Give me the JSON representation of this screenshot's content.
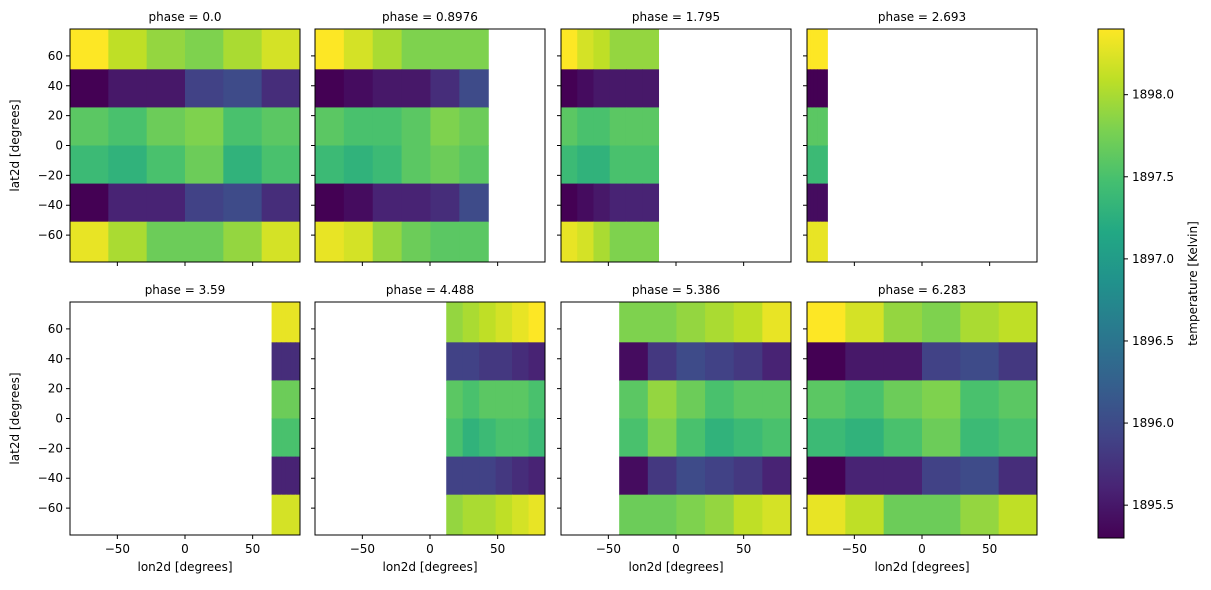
{
  "chart_data": {
    "type": "heatmap",
    "layout": "faceted 2x4 grid with shared colorbar",
    "x_label": "lon2d [degrees]",
    "y_label": "lat2d [degrees]",
    "xlim": [
      -85,
      85
    ],
    "ylim": [
      -78,
      78
    ],
    "x_ticks": [
      -50,
      0,
      50
    ],
    "x_tick_labels": [
      "−50",
      "0",
      "50"
    ],
    "y_ticks": [
      -60,
      -40,
      -20,
      0,
      20,
      40,
      60
    ],
    "y_tick_labels": [
      "−60",
      "−40",
      "−20",
      "0",
      "20",
      "40",
      "60"
    ],
    "lon_edges": [
      -85,
      -57,
      -28.5,
      0,
      28.5,
      57,
      85
    ],
    "lat_edges": [
      -78,
      -51,
      -25.5,
      0,
      25.5,
      51,
      78
    ],
    "colormap": "viridis",
    "colorbar": {
      "label": "temperature [Kelvin]",
      "vmin": 1895.3,
      "vmax": 1898.4,
      "ticks": [
        1895.5,
        1896.0,
        1896.5,
        1897.0,
        1897.5,
        1898.0
      ],
      "tick_labels": [
        "1895.5",
        "1896.0",
        "1896.5",
        "1897.0",
        "1897.5",
        "1898.0"
      ]
    },
    "panels": [
      {
        "title": "phase = 0.0",
        "lon_range": [
          -85,
          85
        ],
        "rows": [
          [
            1898.4,
            1898.1,
            1897.9,
            1897.8,
            1898.0,
            1898.2
          ],
          [
            1895.3,
            1895.5,
            1895.5,
            1895.9,
            1896.0,
            1895.7
          ],
          [
            1897.6,
            1897.5,
            1897.7,
            1897.8,
            1897.5,
            1897.6
          ],
          [
            1897.4,
            1897.3,
            1897.5,
            1897.7,
            1897.3,
            1897.5
          ],
          [
            1895.3,
            1895.6,
            1895.6,
            1895.9,
            1896.0,
            1895.7
          ],
          [
            1898.3,
            1898.0,
            1897.7,
            1897.7,
            1897.9,
            1898.2
          ]
        ]
      },
      {
        "title": "phase = 0.8976",
        "lon_range": [
          -85,
          43
        ],
        "rows": [
          [
            1898.4,
            1898.2,
            1898.0,
            1897.8,
            1897.8,
            1897.8
          ],
          [
            1895.3,
            1895.4,
            1895.5,
            1895.5,
            1895.7,
            1896.0
          ],
          [
            1897.6,
            1897.5,
            1897.5,
            1897.6,
            1897.8,
            1897.7
          ],
          [
            1897.4,
            1897.3,
            1897.4,
            1897.6,
            1897.7,
            1897.6
          ],
          [
            1895.3,
            1895.4,
            1895.6,
            1895.6,
            1895.7,
            1896.0
          ],
          [
            1898.3,
            1898.2,
            1897.9,
            1897.7,
            1897.6,
            1897.6
          ]
        ]
      },
      {
        "title": "phase = 1.795",
        "lon_range": [
          -85,
          -13
        ],
        "rows": [
          [
            1898.4,
            1898.2,
            1898.1,
            1897.9,
            1897.9,
            1897.9
          ],
          [
            1895.3,
            1895.4,
            1895.5,
            1895.5,
            1895.5,
            1895.5
          ],
          [
            1897.6,
            1897.5,
            1897.5,
            1897.6,
            1897.6,
            1897.6
          ],
          [
            1897.4,
            1897.3,
            1897.3,
            1897.5,
            1897.5,
            1897.5
          ],
          [
            1895.3,
            1895.4,
            1895.5,
            1895.6,
            1895.6,
            1895.6
          ],
          [
            1898.3,
            1898.2,
            1898.0,
            1897.8,
            1897.8,
            1897.8
          ]
        ]
      },
      {
        "title": "phase = 2.693",
        "lon_range": [
          -85,
          -70
        ],
        "rows": [
          [
            1898.4,
            1898.4,
            1898.4,
            1898.4,
            1898.4,
            1898.4
          ],
          [
            1895.3,
            1895.3,
            1895.3,
            1895.3,
            1895.3,
            1895.3
          ],
          [
            1897.6,
            1897.6,
            1897.6,
            1897.6,
            1897.6,
            1897.6
          ],
          [
            1897.4,
            1897.4,
            1897.4,
            1897.4,
            1897.4,
            1897.4
          ],
          [
            1895.4,
            1895.4,
            1895.4,
            1895.4,
            1895.4,
            1895.4
          ],
          [
            1898.3,
            1898.3,
            1898.3,
            1898.3,
            1898.3,
            1898.3
          ]
        ]
      },
      {
        "title": "phase = 3.59",
        "lon_range": [
          64,
          85
        ],
        "rows": [
          [
            1898.3,
            1898.3,
            1898.3,
            1898.3,
            1898.3,
            1898.3
          ],
          [
            1895.7,
            1895.7,
            1895.7,
            1895.7,
            1895.7,
            1895.7
          ],
          [
            1897.7,
            1897.7,
            1897.7,
            1897.7,
            1897.7,
            1897.7
          ],
          [
            1897.5,
            1897.5,
            1897.5,
            1897.5,
            1897.5,
            1897.5
          ],
          [
            1895.6,
            1895.6,
            1895.6,
            1895.6,
            1895.6,
            1895.6
          ],
          [
            1898.2,
            1898.2,
            1898.2,
            1898.2,
            1898.2,
            1898.2
          ]
        ]
      },
      {
        "title": "phase = 4.488",
        "lon_range": [
          12,
          85
        ],
        "rows": [
          [
            1897.9,
            1898.0,
            1898.1,
            1898.2,
            1898.3,
            1898.4
          ],
          [
            1895.9,
            1895.9,
            1895.8,
            1895.8,
            1895.7,
            1895.6
          ],
          [
            1897.6,
            1897.5,
            1897.6,
            1897.6,
            1897.6,
            1897.5
          ],
          [
            1897.5,
            1897.3,
            1897.4,
            1897.5,
            1897.5,
            1897.4
          ],
          [
            1895.9,
            1895.9,
            1895.9,
            1895.8,
            1895.7,
            1895.6
          ],
          [
            1897.9,
            1898.0,
            1898.0,
            1898.1,
            1898.2,
            1898.3
          ]
        ]
      },
      {
        "title": "phase = 5.386",
        "lon_range": [
          -42,
          85
        ],
        "rows": [
          [
            1897.8,
            1897.8,
            1897.9,
            1898.0,
            1898.1,
            1898.3
          ],
          [
            1895.4,
            1895.8,
            1896.0,
            1895.9,
            1895.8,
            1895.6
          ],
          [
            1897.6,
            1897.9,
            1897.7,
            1897.5,
            1897.6,
            1897.6
          ],
          [
            1897.5,
            1897.8,
            1897.5,
            1897.3,
            1897.4,
            1897.5
          ],
          [
            1895.4,
            1895.8,
            1896.0,
            1895.9,
            1895.8,
            1895.6
          ],
          [
            1897.7,
            1897.7,
            1897.8,
            1897.9,
            1898.1,
            1898.2
          ]
        ]
      },
      {
        "title": "phase = 6.283",
        "lon_range": [
          -85,
          85
        ],
        "rows": [
          [
            1898.4,
            1898.2,
            1897.9,
            1897.8,
            1898.0,
            1898.1
          ],
          [
            1895.3,
            1895.5,
            1895.5,
            1895.9,
            1896.0,
            1895.8
          ],
          [
            1897.6,
            1897.5,
            1897.7,
            1897.8,
            1897.5,
            1897.6
          ],
          [
            1897.4,
            1897.3,
            1897.5,
            1897.7,
            1897.4,
            1897.5
          ],
          [
            1895.3,
            1895.6,
            1895.6,
            1895.9,
            1896.0,
            1895.7
          ],
          [
            1898.3,
            1898.1,
            1897.7,
            1897.7,
            1897.9,
            1898.1
          ]
        ]
      }
    ]
  }
}
